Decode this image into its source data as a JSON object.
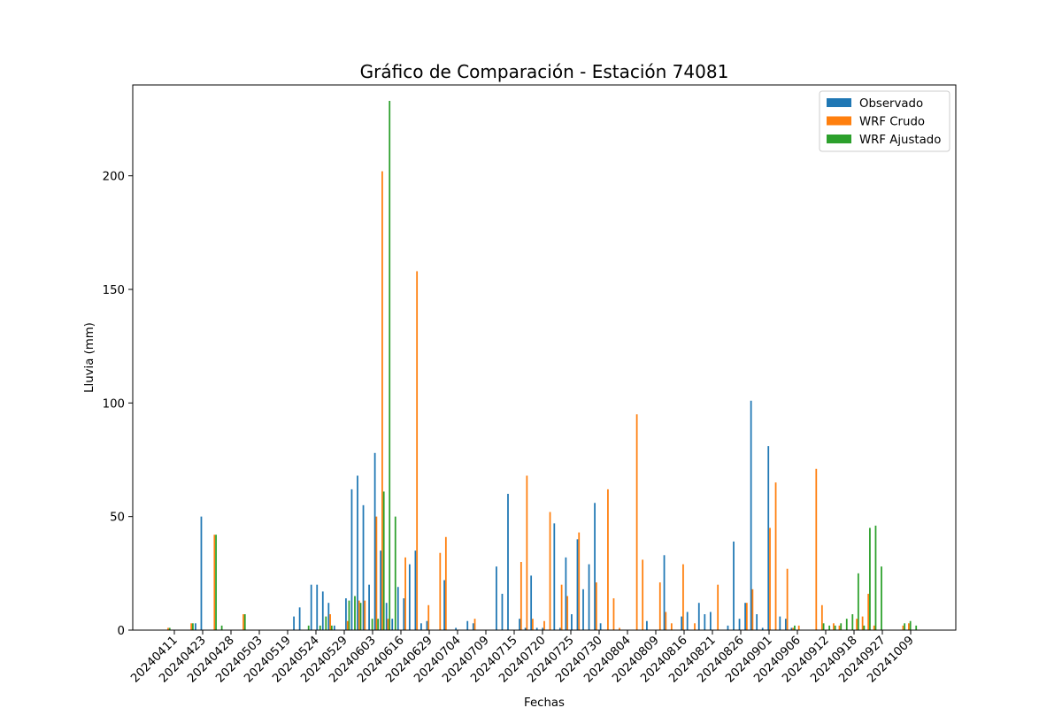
{
  "chart_data": {
    "type": "bar",
    "title": "Gráfico de Comparación - Estación 74081",
    "xlabel": "Fechas",
    "ylabel": "Lluvia (mm)",
    "ylim": [
      0,
      240
    ],
    "yticks": [
      0,
      50,
      100,
      150,
      200
    ],
    "xtick_labels": [
      "20240411",
      "20240423",
      "20240428",
      "20240503",
      "20240519",
      "20240524",
      "20240529",
      "20240603",
      "20240616",
      "20240629",
      "20240704",
      "20240709",
      "20240715",
      "20240720",
      "20240725",
      "20240730",
      "20240804",
      "20240809",
      "20240816",
      "20240821",
      "20240826",
      "20240901",
      "20240906",
      "20240912",
      "20240918",
      "20240927",
      "20241009"
    ],
    "legend_position": "top-right",
    "colors": {
      "observado": "#1f77b4",
      "wrf_crudo": "#ff7f0e",
      "wrf_ajustado": "#2ca02c"
    },
    "series": [
      {
        "name": "Observado",
        "color": "#1f77b4",
        "values": [
          0,
          0,
          0,
          0,
          0,
          3,
          50,
          0,
          0,
          0,
          0,
          0,
          0,
          0,
          0,
          0,
          0,
          0,
          0,
          0,
          0,
          0,
          6,
          10,
          0,
          20,
          20,
          17,
          12,
          2,
          0,
          14,
          62,
          68,
          55,
          20,
          78,
          35,
          12,
          5,
          19,
          14,
          29,
          35,
          3,
          4,
          0,
          0,
          22,
          0,
          1,
          0,
          4,
          3,
          0,
          0,
          0,
          28,
          16,
          60,
          0,
          5,
          1,
          24,
          1,
          1,
          0,
          47,
          1,
          32,
          7,
          40,
          18,
          29,
          56,
          3,
          0,
          0,
          0,
          0,
          0,
          0,
          0,
          4,
          0,
          0,
          33,
          0,
          0,
          6,
          8,
          0,
          12,
          7,
          8,
          0,
          0,
          2,
          39,
          5,
          12,
          101,
          7,
          1,
          81,
          0,
          6,
          5,
          1
        ]
      },
      {
        "name": "WRF Crudo",
        "color": "#ff7f0e",
        "values": [
          1,
          0,
          0,
          0,
          3,
          0,
          0,
          0,
          42,
          0,
          0,
          0,
          0,
          7,
          0,
          0,
          0,
          0,
          0,
          0,
          0,
          0,
          0,
          0,
          0,
          0,
          0,
          0,
          7,
          0,
          0,
          4,
          0,
          13,
          13,
          0,
          50,
          202,
          5,
          0,
          0,
          32,
          0,
          158,
          0,
          11,
          0,
          34,
          41,
          0,
          0,
          0,
          0,
          5,
          0,
          0,
          0,
          0,
          0,
          0,
          0,
          30,
          68,
          5,
          0,
          4,
          52,
          0,
          20,
          15,
          0,
          43,
          0,
          0,
          21,
          0,
          62,
          14,
          1,
          0,
          0,
          95,
          31,
          0,
          0,
          21,
          8,
          3,
          0,
          29,
          0,
          3,
          0,
          0,
          0,
          20,
          0,
          0,
          0,
          0,
          12,
          18,
          0,
          0,
          45,
          65,
          0,
          27,
          1,
          2,
          0,
          0,
          71,
          11,
          0,
          3,
          2,
          0,
          0,
          5,
          6,
          16,
          2,
          0,
          0,
          0,
          0,
          2,
          3,
          0
        ]
      },
      {
        "name": "WRF Ajustado",
        "color": "#2ca02c",
        "values": [
          1,
          0,
          0,
          0,
          3,
          0,
          0,
          0,
          42,
          2,
          0,
          0,
          0,
          7,
          0,
          0,
          0,
          0,
          0,
          0,
          0,
          0,
          0,
          0,
          2,
          0,
          2,
          6,
          2,
          0,
          0,
          13,
          15,
          12,
          0,
          5,
          5,
          61,
          233,
          50,
          0,
          0,
          0,
          0,
          0,
          0,
          0,
          0,
          0,
          0,
          0,
          0,
          0,
          0,
          0,
          0,
          0,
          0,
          0,
          0,
          0,
          0,
          0,
          0,
          0,
          0,
          0,
          0,
          0,
          0,
          0,
          0,
          0,
          0,
          0,
          0,
          0,
          0,
          0,
          0,
          0,
          0,
          0,
          0,
          0,
          0,
          0,
          0,
          0,
          0,
          0,
          0,
          0,
          0,
          0,
          0,
          0,
          0,
          0,
          0,
          0,
          0,
          0,
          0,
          0,
          0,
          0,
          0,
          2,
          0,
          0,
          0,
          0,
          3,
          2,
          2,
          3,
          5,
          7,
          25,
          2,
          45,
          46,
          28,
          0,
          0,
          0,
          3,
          4,
          2
        ]
      }
    ]
  }
}
